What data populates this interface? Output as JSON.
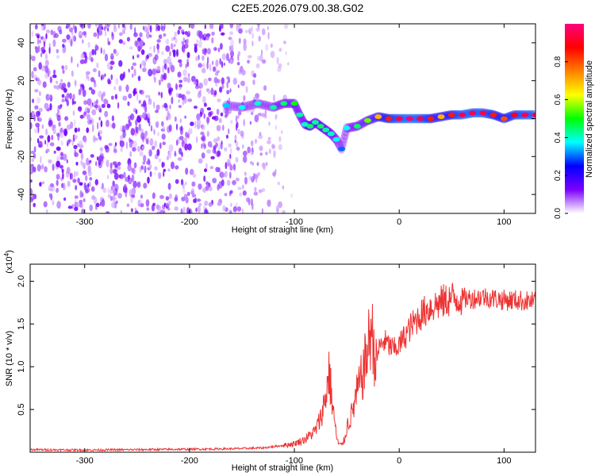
{
  "title": "C2E5.2026.079.00.38.G02",
  "chart_data": [
    {
      "type": "heatmap",
      "xlabel": "Height of straight line (km)",
      "ylabel": "Frequency (Hz)",
      "xlim": [
        -352,
        130
      ],
      "ylim": [
        -50,
        50
      ],
      "xticks": [
        -300,
        -200,
        -100,
        0,
        100
      ],
      "xtick_labels": [
        "-300",
        "-200",
        "-100",
        "0",
        "100"
      ],
      "yticks": [
        -40,
        -20,
        0,
        20,
        40
      ],
      "ytick_labels": [
        "-40",
        "-20",
        "0",
        "20",
        "40"
      ],
      "noise_region_x": [
        -352,
        -100
      ],
      "signal_track": [
        {
          "x": -165,
          "y": 7,
          "amp": 0.35
        },
        {
          "x": -150,
          "y": 6,
          "amp": 0.38
        },
        {
          "x": -135,
          "y": 8,
          "amp": 0.4
        },
        {
          "x": -120,
          "y": 6,
          "amp": 0.42
        },
        {
          "x": -110,
          "y": 8,
          "amp": 0.45
        },
        {
          "x": -100,
          "y": 8,
          "amp": 0.5
        },
        {
          "x": -95,
          "y": 2,
          "amp": 0.42
        },
        {
          "x": -90,
          "y": -3,
          "amp": 0.4
        },
        {
          "x": -85,
          "y": -4,
          "amp": 0.45
        },
        {
          "x": -80,
          "y": -2,
          "amp": 0.42
        },
        {
          "x": -75,
          "y": -4,
          "amp": 0.45
        },
        {
          "x": -70,
          "y": -6,
          "amp": 0.42
        },
        {
          "x": -65,
          "y": -8,
          "amp": 0.4
        },
        {
          "x": -60,
          "y": -11,
          "amp": 0.38
        },
        {
          "x": -55,
          "y": -16,
          "amp": 0.3
        },
        {
          "x": -50,
          "y": -5,
          "amp": 0.38
        },
        {
          "x": -40,
          "y": -4,
          "amp": 0.45
        },
        {
          "x": -30,
          "y": -1,
          "amp": 0.55
        },
        {
          "x": -20,
          "y": 1,
          "amp": 0.7
        },
        {
          "x": -10,
          "y": 0,
          "amp": 0.85
        },
        {
          "x": 0,
          "y": 0,
          "amp": 0.95
        },
        {
          "x": 10,
          "y": 0,
          "amp": 0.98
        },
        {
          "x": 20,
          "y": 0,
          "amp": 0.95
        },
        {
          "x": 30,
          "y": 0,
          "amp": 0.85
        },
        {
          "x": 40,
          "y": 1,
          "amp": 0.7
        },
        {
          "x": 50,
          "y": 2,
          "amp": 0.85
        },
        {
          "x": 60,
          "y": 2,
          "amp": 0.95
        },
        {
          "x": 70,
          "y": 3,
          "amp": 0.95
        },
        {
          "x": 80,
          "y": 3,
          "amp": 0.95
        },
        {
          "x": 90,
          "y": 2,
          "amp": 0.85
        },
        {
          "x": 100,
          "y": 0,
          "amp": 0.8
        },
        {
          "x": 110,
          "y": 2,
          "amp": 0.9
        },
        {
          "x": 120,
          "y": 2,
          "amp": 0.95
        },
        {
          "x": 130,
          "y": 2,
          "amp": 0.95
        }
      ],
      "colorbar": {
        "label": "Normalized spectral amplitude",
        "range": [
          0,
          1
        ],
        "ticks": [
          0.0,
          0.2,
          0.4,
          0.6,
          0.8
        ],
        "tick_labels": [
          "0.0",
          "0.2",
          "0.4",
          "0.6",
          "0.8"
        ],
        "colors": [
          "#ffffff",
          "#7b00ff",
          "#0000ff",
          "#00ffff",
          "#00ff00",
          "#ffff00",
          "#ff8000",
          "#ff0000",
          "#ff0080"
        ]
      }
    },
    {
      "type": "line",
      "xlabel": "Height of straight line (km)",
      "ylabel": "SNR (10 * v/v)",
      "y_multiplier_label": "(x10",
      "y_multiplier_exp": "4",
      "y_multiplier_close": ")",
      "xlim": [
        -352,
        130
      ],
      "ylim": [
        0,
        22000
      ],
      "xticks": [
        -300,
        -200,
        -100,
        0,
        100
      ],
      "xtick_labels": [
        "-300",
        "-200",
        "-100",
        "0",
        "100"
      ],
      "yticks": [
        5000,
        10000,
        15000,
        20000
      ],
      "ytick_labels": [
        "0.5",
        "1.0",
        "1.5",
        "2.0"
      ],
      "color": "#ee3333",
      "series": [
        {
          "x": [
            -352,
            -300,
            -250,
            -200,
            -160,
            -130,
            -110,
            -100,
            -90,
            -80,
            -75,
            -70,
            -67,
            -64,
            -62,
            -60,
            -58,
            -55,
            -52,
            -50,
            -45,
            -40,
            -35,
            -30,
            -27,
            -25,
            -22,
            -20,
            -15,
            -10,
            -5,
            0,
            5,
            10,
            20,
            30,
            40,
            50,
            60,
            70,
            80,
            90,
            100,
            110,
            120,
            130
          ],
          "y": [
            300,
            250,
            300,
            350,
            400,
            500,
            800,
            1000,
            1500,
            2500,
            4000,
            6500,
            9500,
            6000,
            4000,
            2000,
            1000,
            800,
            1500,
            3000,
            4500,
            7000,
            9000,
            12000,
            14500,
            13000,
            10000,
            12000,
            13000,
            12500,
            12000,
            12500,
            13500,
            14500,
            16000,
            17000,
            17500,
            18000,
            18000,
            18000,
            18200,
            18000,
            17800,
            17800,
            17700,
            17600
          ]
        }
      ]
    }
  ]
}
